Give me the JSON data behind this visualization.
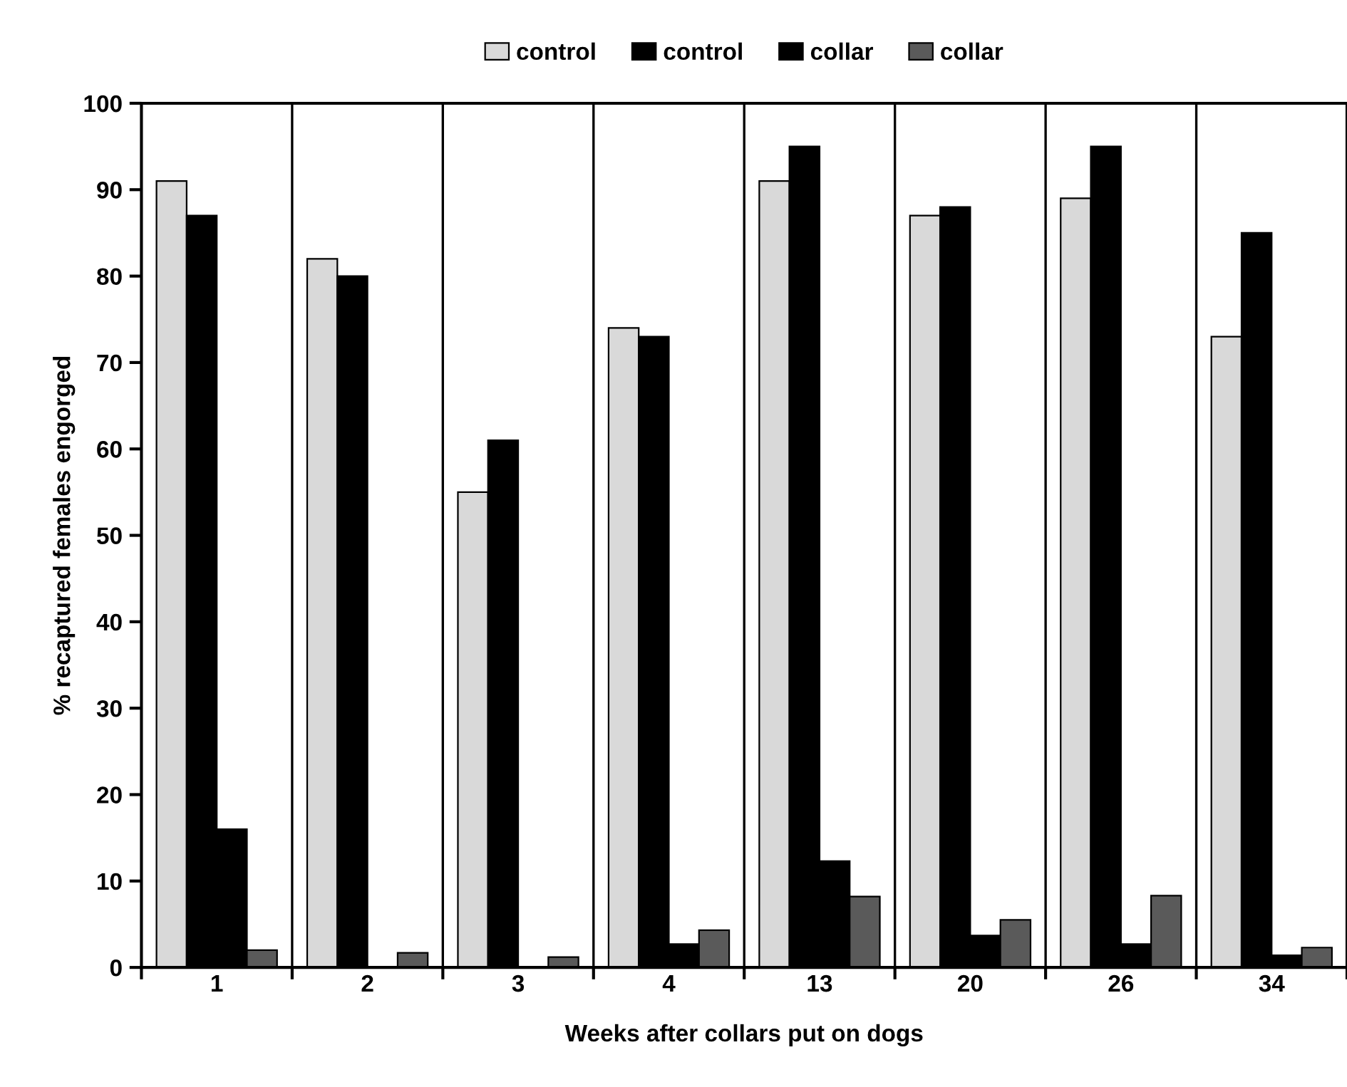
{
  "chart_data": {
    "type": "bar",
    "xlabel": "Weeks after collars put on dogs",
    "ylabel": "% recaptured females engorged",
    "categories": [
      "1",
      "2",
      "3",
      "4",
      "13",
      "20",
      "26",
      "34"
    ],
    "series": [
      {
        "name": "control",
        "color": "#d9d9d9",
        "values": [
          91,
          82,
          55,
          74,
          91,
          87,
          89,
          73
        ]
      },
      {
        "name": "control",
        "color": "#000000",
        "values": [
          87,
          80,
          61,
          73,
          95,
          88,
          95,
          85
        ]
      },
      {
        "name": "collar",
        "color": "#000000",
        "values": [
          16,
          0,
          0,
          2.7,
          12.3,
          3.7,
          2.7,
          1.4
        ]
      },
      {
        "name": "collar",
        "color": "#5a5a5a",
        "values": [
          2,
          1.7,
          1.2,
          4.3,
          8.2,
          5.5,
          8.3,
          2.3
        ]
      }
    ],
    "ylim": [
      0,
      100
    ],
    "yticks": [
      0,
      10,
      20,
      30,
      40,
      50,
      60,
      70,
      80,
      90,
      100
    ],
    "grid": "x",
    "legend": "top"
  }
}
